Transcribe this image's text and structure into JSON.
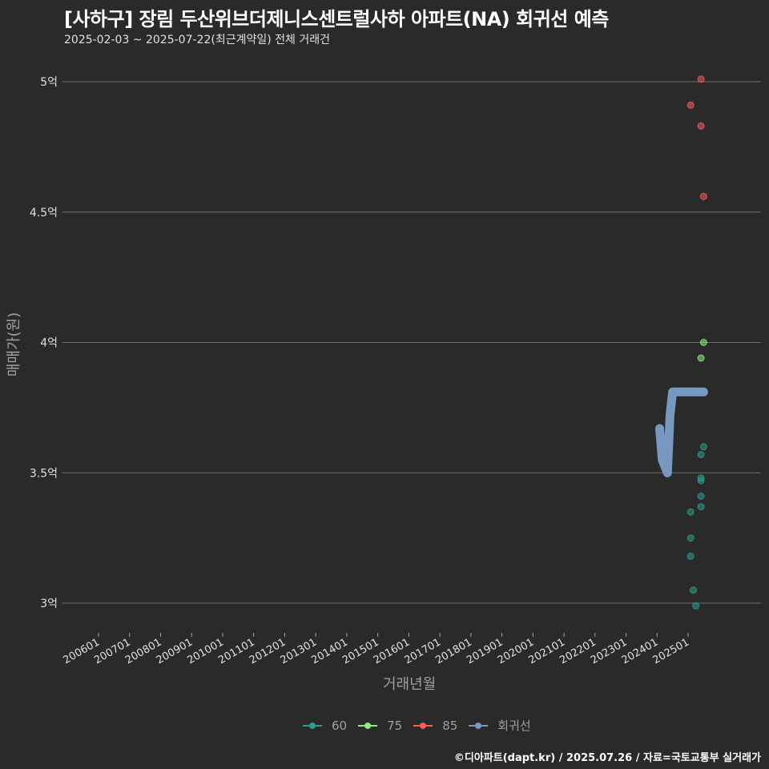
{
  "header": {
    "title": "[사하구] 장림 두산위브더제니스센트럴사하 아파트(NA) 회귀선 예측",
    "subtitle": "2025-02-03 ~ 2025-07-22(최근계약일) 전체 거래건"
  },
  "axes": {
    "ylabel": "매매가(원)",
    "xlabel": "거래년월"
  },
  "legend": [
    {
      "label": "60",
      "color": "#2a9d8f"
    },
    {
      "label": "75",
      "color": "#90ee7e"
    },
    {
      "label": "85",
      "color": "#f45b5b"
    },
    {
      "label": "회귀선",
      "color": "#7798bf"
    }
  ],
  "credit": "©디아파트(dapt.kr) / 2025.07.26 / 자료=국토교통부 실거래가",
  "colors": {
    "background": "#2a2a2b",
    "grid": "#707073",
    "s60": "#2a9d8f",
    "s75": "#90ee7e",
    "s85": "#f45b5b",
    "regression": "#7798bf"
  },
  "chart_data": {
    "type": "scatter",
    "title": "[사하구] 장림 두산위브더제니스센트럴사하 아파트(NA) 회귀선 예측",
    "subtitle": "2025-02-03 ~ 2025-07-22(최근계약일) 전체 거래건",
    "xlabel": "거래년월",
    "ylabel": "매매가(원)",
    "x_ticks": [
      "200601",
      "200701",
      "200801",
      "200901",
      "201001",
      "201101",
      "201201",
      "201301",
      "201401",
      "201501",
      "201601",
      "201701",
      "201801",
      "201901",
      "202001",
      "202101",
      "202201",
      "202301",
      "202401",
      "202501"
    ],
    "y_ticks": [
      "3억",
      "3.5억",
      "4억",
      "4.5억",
      "5억"
    ],
    "y_tick_values": [
      300000000,
      350000000,
      400000000,
      450000000,
      500000000
    ],
    "ylim": [
      289000000,
      508000000
    ],
    "grid": "horizontal",
    "legend_position": "bottom",
    "series": [
      {
        "name": "60",
        "type": "scatter",
        "color": "#2a9d8f",
        "points": [
          {
            "x": "202507",
            "y": 360000000
          },
          {
            "x": "202506",
            "y": 357000000
          },
          {
            "x": "202506",
            "y": 348000000
          },
          {
            "x": "202506",
            "y": 347000000
          },
          {
            "x": "202506",
            "y": 341000000
          },
          {
            "x": "202506",
            "y": 337000000
          },
          {
            "x": "202502",
            "y": 335000000
          },
          {
            "x": "202502",
            "y": 325000000
          },
          {
            "x": "202502",
            "y": 318000000
          },
          {
            "x": "202503",
            "y": 305000000
          },
          {
            "x": "202504",
            "y": 299000000
          }
        ]
      },
      {
        "name": "75",
        "type": "scatter",
        "color": "#90ee7e",
        "points": [
          {
            "x": "202507",
            "y": 400000000
          },
          {
            "x": "202506",
            "y": 394000000
          }
        ]
      },
      {
        "name": "85",
        "type": "scatter",
        "color": "#f45b5b",
        "points": [
          {
            "x": "202506",
            "y": 501000000
          },
          {
            "x": "202502",
            "y": 491000000
          },
          {
            "x": "202506",
            "y": 483000000
          },
          {
            "x": "202507",
            "y": 456000000
          }
        ]
      },
      {
        "name": "회귀선",
        "type": "line",
        "color": "#7798bf",
        "points": [
          {
            "x": "202402",
            "y": 367000000
          },
          {
            "x": "202403",
            "y": 355000000
          },
          {
            "x": "202405",
            "y": 350000000
          },
          {
            "x": "202406",
            "y": 372000000
          },
          {
            "x": "202407",
            "y": 381000000
          },
          {
            "x": "202507",
            "y": 381000000
          }
        ]
      }
    ]
  }
}
